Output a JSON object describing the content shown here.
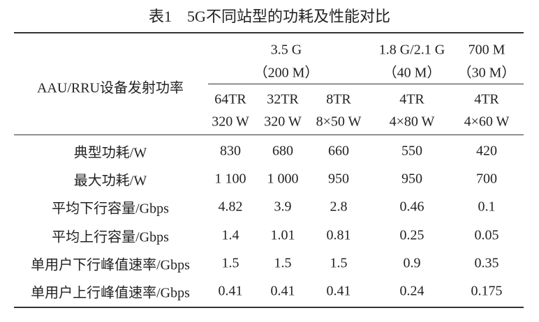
{
  "title": "表1　5G不同站型的功耗及性能对比",
  "table": {
    "corner": "AAU/RRU设备发射功率",
    "groups": [
      {
        "band": "3.5 G",
        "bandwidth": "（200 M）"
      },
      {
        "band": "1.8 G/2.1 G",
        "bandwidth": "（40 M）"
      },
      {
        "band": "700 M",
        "bandwidth": "（30 M）"
      }
    ],
    "subheaders": [
      {
        "trx": "64TR",
        "power": "320 W"
      },
      {
        "trx": "32TR",
        "power": "320 W"
      },
      {
        "trx": "8TR",
        "power": "8×50 W"
      },
      {
        "trx": "4TR",
        "power": "4×80 W"
      },
      {
        "trx": "4TR",
        "power": "4×60 W"
      }
    ],
    "rows": [
      {
        "label": "典型功耗/W",
        "values": [
          "830",
          "680",
          "660",
          "550",
          "420"
        ]
      },
      {
        "label": "最大功耗/W",
        "values": [
          "1 100",
          "1 000",
          "950",
          "950",
          "700"
        ]
      },
      {
        "label": "平均下行容量/Gbps",
        "values": [
          "4.82",
          "3.9",
          "2.8",
          "0.46",
          "0.1"
        ]
      },
      {
        "label": "平均上行容量/Gbps",
        "values": [
          "1.4",
          "1.01",
          "0.81",
          "0.25",
          "0.05"
        ]
      },
      {
        "label": "单用户下行峰值速率/Gbps",
        "values": [
          "1.5",
          "1.5",
          "1.5",
          "0.9",
          "0.35"
        ]
      },
      {
        "label": "单用户上行峰值速率/Gbps",
        "values": [
          "0.41",
          "0.41",
          "0.41",
          "0.24",
          "0.175"
        ]
      }
    ]
  }
}
